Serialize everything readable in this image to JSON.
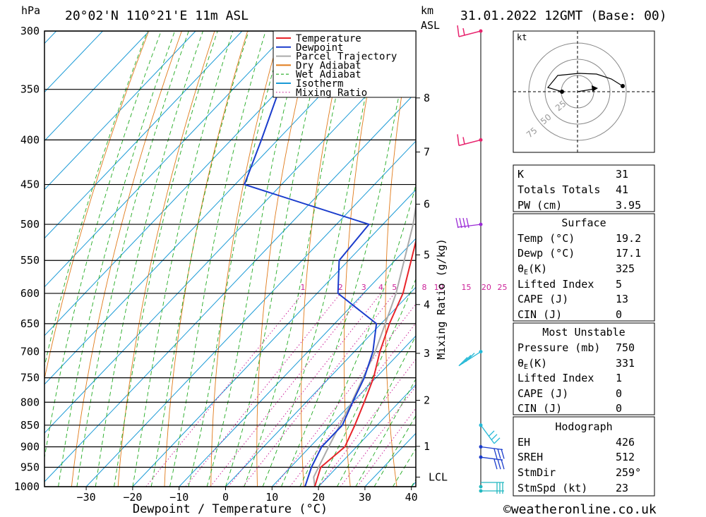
{
  "header": {
    "pressure_unit": "hPa",
    "location": "20°02'N 110°21'E 11m ASL",
    "km_label": "km",
    "asl_label": "ASL",
    "datetime": "31.01.2022 12GMT (Base: 00)"
  },
  "legend": {
    "items": [
      {
        "label": "Temperature",
        "color": "#e8242a",
        "style": "solid"
      },
      {
        "label": "Dewpoint",
        "color": "#1a3ccc",
        "style": "solid"
      },
      {
        "label": "Parcel Trajectory",
        "color": "#aaaaaa",
        "style": "solid"
      },
      {
        "label": "Dry Adiabat",
        "color": "#e07a1a",
        "style": "solid"
      },
      {
        "label": "Wet Adiabat",
        "color": "#22aa22",
        "style": "dashed"
      },
      {
        "label": "Isotherm",
        "color": "#1a9ad6",
        "style": "solid"
      },
      {
        "label": "Mixing Ratio",
        "color": "#cc2299",
        "style": "dotted"
      }
    ]
  },
  "chart_data": {
    "type": "skew-t",
    "xlabel": "Dewpoint / Temperature (°C)",
    "ylabel": "hPa",
    "pressure_levels": [
      300,
      350,
      400,
      450,
      500,
      550,
      600,
      650,
      700,
      750,
      800,
      850,
      900,
      950,
      1000
    ],
    "x_ticks": [
      -30,
      -20,
      -10,
      0,
      10,
      20,
      30,
      40
    ],
    "x_tick_labels": [
      "−30",
      "−20",
      "−10",
      "0",
      "10",
      "20",
      "30",
      "40"
    ],
    "km_ticks": [
      {
        "km": "1",
        "p": 899
      },
      {
        "km": "2",
        "p": 796
      },
      {
        "km": "3",
        "p": 703
      },
      {
        "km": "4",
        "p": 618
      },
      {
        "km": "5",
        "p": 542
      },
      {
        "km": "6",
        "p": 474
      },
      {
        "km": "7",
        "p": 413
      },
      {
        "km": "8",
        "p": 358
      }
    ],
    "lcl": {
      "label": "LCL",
      "p": 975
    },
    "mixing_ratio_axis_label": "Mixing Ratio (g/kg)",
    "mixing_ratios": [
      "1",
      "2",
      "3",
      "4",
      "5",
      "8",
      "10",
      "15",
      "20",
      "25"
    ],
    "temperature": [
      {
        "p": 1000,
        "t": 19.2
      },
      {
        "p": 950,
        "t": 16.5
      },
      {
        "p": 900,
        "t": 17.5
      },
      {
        "p": 850,
        "t": 15.2
      },
      {
        "p": 800,
        "t": 12.5
      },
      {
        "p": 750,
        "t": 9.5
      },
      {
        "p": 700,
        "t": 5.5
      },
      {
        "p": 650,
        "t": 1.8
      },
      {
        "p": 600,
        "t": -1.5
      },
      {
        "p": 550,
        "t": -6.5
      },
      {
        "p": 500,
        "t": -12.0
      },
      {
        "p": 450,
        "t": -13.0
      },
      {
        "p": 400,
        "t": -20.5
      },
      {
        "p": 360,
        "t": -27.0
      }
    ],
    "dewpoint": [
      {
        "p": 1000,
        "t": 17.1
      },
      {
        "p": 950,
        "t": 14.5
      },
      {
        "p": 900,
        "t": 12.5
      },
      {
        "p": 850,
        "t": 12.5
      },
      {
        "p": 800,
        "t": 10.0
      },
      {
        "p": 750,
        "t": 7.5
      },
      {
        "p": 700,
        "t": 4.0
      },
      {
        "p": 650,
        "t": -1.0
      },
      {
        "p": 600,
        "t": -15.5
      },
      {
        "p": 550,
        "t": -22.0
      },
      {
        "p": 500,
        "t": -23.0
      },
      {
        "p": 450,
        "t": -58.0
      },
      {
        "p": 400,
        "t": -63.5
      },
      {
        "p": 350,
        "t": -70.0
      },
      {
        "p": 300,
        "t": -72.0
      }
    ],
    "parcel": [
      {
        "p": 1000,
        "t": 19.2
      },
      {
        "p": 975,
        "t": 17.0
      },
      {
        "p": 900,
        "t": 14.0
      },
      {
        "p": 800,
        "t": 9.8
      },
      {
        "p": 700,
        "t": 4.5
      },
      {
        "p": 600,
        "t": -3.0
      },
      {
        "p": 500,
        "t": -13.5
      },
      {
        "p": 400,
        "t": -28.0
      },
      {
        "p": 300,
        "t": -50.0
      }
    ],
    "wind_barbs": [
      {
        "p": 300,
        "color": "#e8246e"
      },
      {
        "p": 400,
        "color": "#e8246e"
      },
      {
        "p": 500,
        "color": "#9a2ad6"
      },
      {
        "p": 700,
        "color": "#22b8d6"
      },
      {
        "p": 850,
        "color": "#22b8d6"
      },
      {
        "p": 900,
        "color": "#1a3ccc"
      },
      {
        "p": 925,
        "color": "#1a3ccc"
      },
      {
        "p": 1000,
        "color": "#22b8c0"
      }
    ]
  },
  "hodograph": {
    "unit": "kt",
    "ring_labels": [
      "25",
      "50",
      "75"
    ]
  },
  "indices": {
    "k_label": "K",
    "k_value": "31",
    "tt_label": "Totals Totals",
    "tt_value": "41",
    "pw_label": "PW (cm)",
    "pw_value": "3.95"
  },
  "surface": {
    "title": "Surface",
    "temp_label": "Temp (°C)",
    "temp_value": "19.2",
    "dewp_label": "Dewp (°C)",
    "dewp_value": "17.1",
    "theta_sym": "θ",
    "theta_sub": "E",
    "theta_unit": "(K)",
    "theta_value": "325",
    "li_label": "Lifted Index",
    "li_value": "5",
    "cape_label": "CAPE (J)",
    "cape_value": "13",
    "cin_label": "CIN (J)",
    "cin_value": "0"
  },
  "most_unstable": {
    "title": "Most Unstable",
    "pressure_label": "Pressure (mb)",
    "pressure_value": "750",
    "theta_sym": "θ",
    "theta_sub": "E",
    "theta_unit": "(K)",
    "theta_value": "331",
    "li_label": "Lifted Index",
    "li_value": "1",
    "cape_label": "CAPE (J)",
    "cape_value": "0",
    "cin_label": "CIN (J)",
    "cin_value": "0"
  },
  "hodo_table": {
    "title": "Hodograph",
    "eh_label": "EH",
    "eh_value": "426",
    "sreh_label": "SREH",
    "sreh_value": "512",
    "stmdir_label": "StmDir",
    "stmdir_value": "259°",
    "stmspd_label": "StmSpd (kt)",
    "stmspd_value": "23"
  },
  "footer": {
    "copyright": "©weatheronline.co.uk"
  }
}
